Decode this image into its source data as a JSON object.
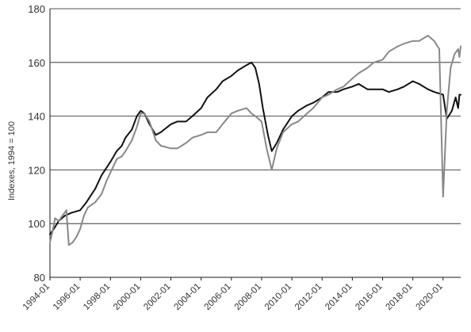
{
  "chart_data": {
    "type": "line",
    "title": "",
    "xlabel": "",
    "ylabel": "Indexes, 1994 = 100",
    "ylim": [
      80,
      180
    ],
    "y_ticks": [
      80,
      100,
      120,
      140,
      160,
      180
    ],
    "x_range": [
      "1994-01",
      "2021-03"
    ],
    "x_tick_labels": [
      "1994-01",
      "1996-01",
      "1998-01",
      "2000-01",
      "2002-01",
      "2004-01",
      "2006-01",
      "2008-01",
      "2010-01",
      "2012-01",
      "2014-01",
      "2016-01",
      "2018-01",
      "2020-01"
    ],
    "grid": "horizontal",
    "legend": "none",
    "series": [
      {
        "color": "#111111",
        "points": [
          [
            "1994-01",
            96
          ],
          [
            "1994-04",
            98
          ],
          [
            "1994-08",
            101
          ],
          [
            "1995-01",
            103
          ],
          [
            "1995-06",
            104
          ],
          [
            "1996-01",
            105
          ],
          [
            "1996-06",
            108
          ],
          [
            "1997-01",
            113
          ],
          [
            "1997-06",
            118
          ],
          [
            "1998-01",
            123
          ],
          [
            "1998-06",
            127
          ],
          [
            "1998-10",
            129
          ],
          [
            "1999-01",
            132
          ],
          [
            "1999-06",
            135
          ],
          [
            "1999-10",
            140
          ],
          [
            "2000-01",
            142
          ],
          [
            "2000-04",
            141
          ],
          [
            "2000-08",
            137
          ],
          [
            "2001-01",
            133
          ],
          [
            "2001-05",
            134
          ],
          [
            "2002-01",
            137
          ],
          [
            "2002-06",
            138
          ],
          [
            "2003-01",
            138
          ],
          [
            "2003-06",
            140
          ],
          [
            "2004-01",
            143
          ],
          [
            "2004-06",
            147
          ],
          [
            "2005-01",
            150
          ],
          [
            "2005-06",
            153
          ],
          [
            "2006-01",
            155
          ],
          [
            "2006-06",
            157
          ],
          [
            "2007-01",
            159
          ],
          [
            "2007-05",
            160
          ],
          [
            "2007-08",
            158
          ],
          [
            "2007-11",
            152
          ],
          [
            "2008-02",
            143
          ],
          [
            "2008-06",
            133
          ],
          [
            "2008-09",
            127
          ],
          [
            "2009-01",
            130
          ],
          [
            "2009-06",
            135
          ],
          [
            "2010-01",
            140
          ],
          [
            "2010-06",
            142
          ],
          [
            "2011-01",
            144
          ],
          [
            "2011-06",
            145
          ],
          [
            "2012-01",
            147
          ],
          [
            "2012-06",
            149
          ],
          [
            "2013-01",
            149
          ],
          [
            "2013-06",
            150
          ],
          [
            "2014-01",
            151
          ],
          [
            "2014-06",
            152
          ],
          [
            "2015-01",
            150
          ],
          [
            "2015-06",
            150
          ],
          [
            "2016-01",
            150
          ],
          [
            "2016-06",
            149
          ],
          [
            "2017-01",
            150
          ],
          [
            "2017-06",
            151
          ],
          [
            "2018-01",
            153
          ],
          [
            "2018-06",
            152
          ],
          [
            "2019-01",
            150
          ],
          [
            "2019-06",
            149
          ],
          [
            "2020-01",
            148
          ],
          [
            "2020-04",
            139
          ],
          [
            "2020-08",
            142
          ],
          [
            "2020-11",
            147
          ],
          [
            "2021-01",
            143
          ],
          [
            "2021-02",
            148
          ],
          [
            "2021-03",
            148
          ]
        ]
      },
      {
        "color": "#888888",
        "points": [
          [
            "1994-01",
            93
          ],
          [
            "1994-03",
            97
          ],
          [
            "1994-05",
            102
          ],
          [
            "1994-08",
            101
          ],
          [
            "1994-11",
            103
          ],
          [
            "1995-02",
            105
          ],
          [
            "1995-04",
            92
          ],
          [
            "1995-07",
            93
          ],
          [
            "1995-10",
            95
          ],
          [
            "1996-01",
            98
          ],
          [
            "1996-04",
            103
          ],
          [
            "1996-07",
            106
          ],
          [
            "1997-01",
            108
          ],
          [
            "1997-06",
            111
          ],
          [
            "1997-10",
            116
          ],
          [
            "1998-01",
            119
          ],
          [
            "1998-06",
            124
          ],
          [
            "1998-10",
            125
          ],
          [
            "1999-01",
            127
          ],
          [
            "1999-06",
            131
          ],
          [
            "1999-10",
            136
          ],
          [
            "2000-01",
            141
          ],
          [
            "2000-04",
            141
          ],
          [
            "2000-08",
            138
          ],
          [
            "2001-01",
            131
          ],
          [
            "2001-05",
            129
          ],
          [
            "2002-01",
            128
          ],
          [
            "2002-06",
            128
          ],
          [
            "2003-01",
            130
          ],
          [
            "2003-06",
            132
          ],
          [
            "2004-01",
            133
          ],
          [
            "2004-06",
            134
          ],
          [
            "2005-01",
            134
          ],
          [
            "2005-06",
            137
          ],
          [
            "2006-01",
            141
          ],
          [
            "2006-06",
            142
          ],
          [
            "2007-01",
            143
          ],
          [
            "2007-05",
            141
          ],
          [
            "2007-08",
            140
          ],
          [
            "2008-01",
            138
          ],
          [
            "2008-05",
            128
          ],
          [
            "2008-09",
            120
          ],
          [
            "2009-01",
            128
          ],
          [
            "2009-06",
            134
          ],
          [
            "2010-01",
            137
          ],
          [
            "2010-06",
            138
          ],
          [
            "2011-01",
            141
          ],
          [
            "2011-06",
            143
          ],
          [
            "2012-01",
            147
          ],
          [
            "2012-06",
            148
          ],
          [
            "2013-01",
            150
          ],
          [
            "2013-06",
            151
          ],
          [
            "2014-01",
            154
          ],
          [
            "2014-06",
            156
          ],
          [
            "2015-01",
            158
          ],
          [
            "2015-06",
            160
          ],
          [
            "2016-01",
            161
          ],
          [
            "2016-06",
            164
          ],
          [
            "2017-01",
            166
          ],
          [
            "2017-06",
            167
          ],
          [
            "2018-01",
            168
          ],
          [
            "2018-06",
            168
          ],
          [
            "2019-01",
            170
          ],
          [
            "2019-06",
            168
          ],
          [
            "2019-10",
            165
          ],
          [
            "2020-01",
            110
          ],
          [
            "2020-04",
            142
          ],
          [
            "2020-07",
            158
          ],
          [
            "2020-10",
            163
          ],
          [
            "2021-01",
            165
          ],
          [
            "2021-02",
            162
          ],
          [
            "2021-03",
            166
          ]
        ]
      }
    ]
  }
}
